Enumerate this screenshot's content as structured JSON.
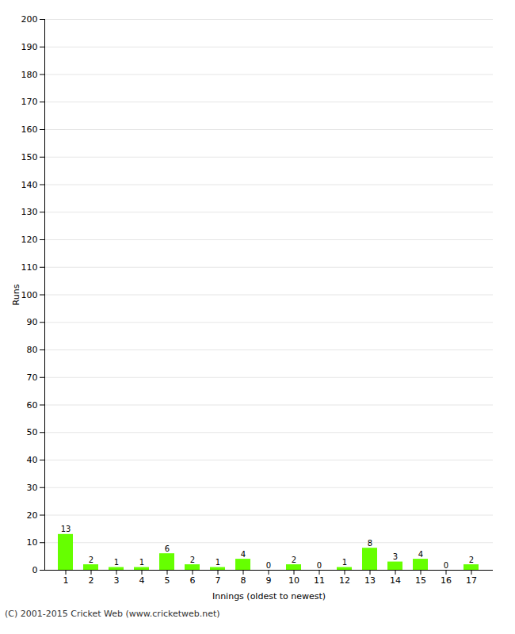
{
  "chart_data": {
    "type": "bar",
    "categories": [
      1,
      2,
      3,
      4,
      5,
      6,
      7,
      8,
      9,
      10,
      11,
      12,
      13,
      14,
      15,
      16,
      17
    ],
    "values": [
      13,
      2,
      1,
      1,
      6,
      2,
      1,
      4,
      0,
      2,
      0,
      1,
      8,
      3,
      4,
      0,
      2
    ],
    "color": "#66ff00",
    "xlabel": "Innings (oldest to newest)",
    "ylabel": "Runs",
    "ylim": [
      0,
      200
    ],
    "yticks": [
      0,
      10,
      20,
      30,
      40,
      50,
      60,
      70,
      80,
      90,
      100,
      110,
      120,
      130,
      140,
      150,
      160,
      170,
      180,
      190,
      200
    ],
    "grid": true,
    "data_labels": true,
    "footer": "(C) 2001-2015 Cricket Web (www.cricketweb.net)"
  }
}
